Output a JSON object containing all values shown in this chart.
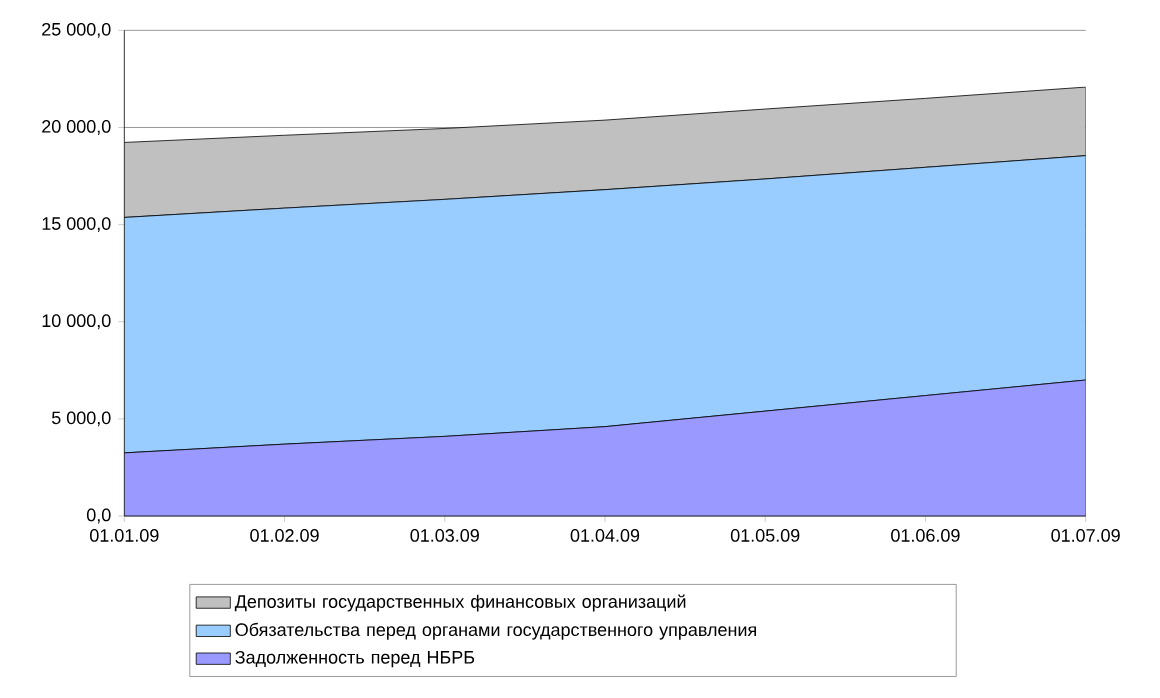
{
  "chart_data": {
    "type": "area",
    "stacked": true,
    "categories": [
      "01.01.09",
      "01.02.09",
      "01.03.09",
      "01.04.09",
      "01.05.09",
      "01.06.09",
      "01.07.09"
    ],
    "series": [
      {
        "name": "Задолженность перед НБРБ",
        "color": "#9999ff",
        "values": [
          3250,
          3700,
          4100,
          4600,
          5400,
          6200,
          7000
        ]
      },
      {
        "name": "Обязательства перед органами государственного управления",
        "color": "#99ccff",
        "values": [
          12120,
          12150,
          12200,
          12200,
          11950,
          11750,
          11550
        ]
      },
      {
        "name": "Депозиты государственных финансовых организаций",
        "color": "#c0c0c0",
        "values": [
          3860,
          3750,
          3650,
          3580,
          3600,
          3550,
          3530
        ]
      }
    ],
    "ylim": [
      0,
      25000
    ],
    "yticks": [
      {
        "value": 0,
        "label": "0,0"
      },
      {
        "value": 5000,
        "label": "5 000,0"
      },
      {
        "value": 10000,
        "label": "10 000,0"
      },
      {
        "value": 15000,
        "label": "15 000,0"
      },
      {
        "value": 20000,
        "label": "20 000,0"
      },
      {
        "value": 25000,
        "label": "25 000,0"
      }
    ],
    "grid": "y",
    "legend": "bottom"
  }
}
